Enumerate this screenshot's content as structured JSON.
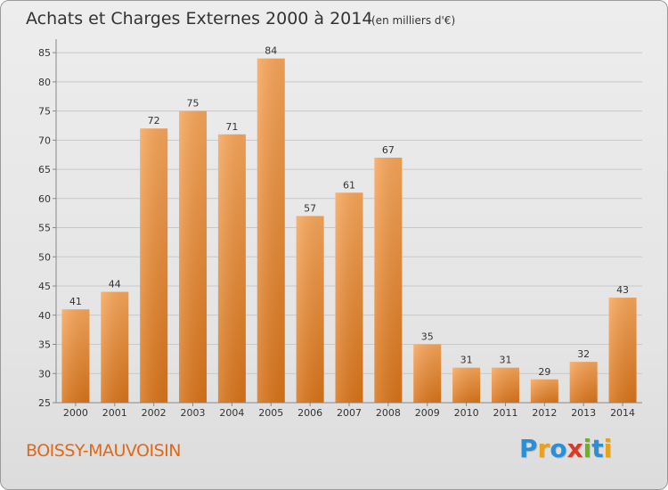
{
  "chart_data": {
    "type": "bar",
    "title": "Achats et Charges Externes 2000 à 2014",
    "subtitle": "(en milliers d'€)",
    "categories": [
      "2000",
      "2001",
      "2002",
      "2003",
      "2004",
      "2005",
      "2006",
      "2007",
      "2008",
      "2009",
      "2010",
      "2011",
      "2012",
      "2013",
      "2014"
    ],
    "values": [
      41,
      44,
      72,
      75,
      71,
      84,
      57,
      61,
      67,
      35,
      31,
      31,
      29,
      32,
      43
    ],
    "ylim": [
      25,
      87
    ],
    "yticks": [
      25,
      30,
      35,
      40,
      45,
      50,
      55,
      60,
      65,
      70,
      75,
      80,
      85
    ],
    "grid": true,
    "bar_color": "#f0922f",
    "bar_color_light": "#f7a65a",
    "bar_color_dark": "#d9741a"
  },
  "commune": "BOISSY-MAUVOISIN",
  "logo": {
    "letters": [
      "P",
      "r",
      "o",
      "x",
      "i",
      "t",
      "i"
    ],
    "colors": [
      "#2a8fd4",
      "#e8a21c",
      "#2a8fd4",
      "#d83a2a",
      "#6bb324",
      "#2a8fd4",
      "#e8a21c"
    ]
  }
}
